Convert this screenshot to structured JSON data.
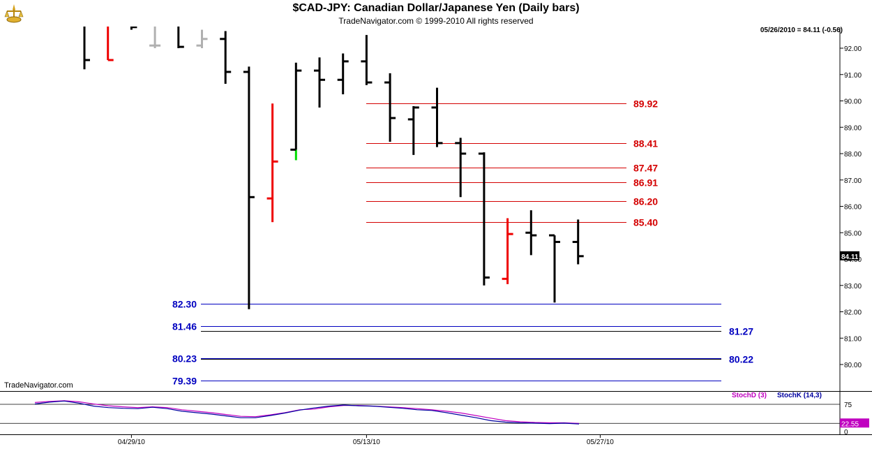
{
  "header": {
    "title": "$CAD-JPY:  Canadian Dollar/Japanese Yen  (Daily bars)",
    "subtitle": "TradeNavigator.com © 1999-2010 All rights reserved",
    "last_quote": "05/26/2010 = 84.11 (-0.56)",
    "brand": "TradeNavigator.com"
  },
  "colors": {
    "resistance": "#d40000",
    "support": "#0000c0",
    "bar_up_default": "#000000",
    "bar_red": "#ee0000",
    "bar_green": "#00dd00",
    "bar_gray": "#b0b0b0",
    "stoch_d": "#c000c0",
    "stoch_k": "#0000a0"
  },
  "chart_data": [
    {
      "type": "ohlc",
      "title": "$CAD-JPY:  Canadian Dollar/Japanese Yen  (Daily bars)",
      "ylim": [
        78.9,
        93.2
      ],
      "y_ticks": [
        "80.00",
        "81.00",
        "82.00",
        "83.00",
        "84.00",
        "85.00",
        "86.00",
        "87.00",
        "88.00",
        "89.00",
        "90.00",
        "91.00",
        "92.00"
      ],
      "x_ticks": [
        "04/29/10",
        "05/13/10",
        "05/27/10"
      ],
      "last_price_label": "84.11",
      "bars": [
        {
          "o": 93.6,
          "h": 93.8,
          "l": 91.2,
          "c": 91.55,
          "color": "black"
        },
        {
          "o": 93.0,
          "h": 93.4,
          "l": 91.55,
          "c": 91.55,
          "color": "red"
        },
        {
          "o": 93.3,
          "h": 93.6,
          "l": 92.7,
          "c": 92.8,
          "color": "black"
        },
        {
          "o": 92.1,
          "h": 93.2,
          "l": 92.0,
          "c": 92.1,
          "color": "gray"
        },
        {
          "o": 93.4,
          "h": 93.5,
          "l": 92.0,
          "c": 92.05,
          "color": "black"
        },
        {
          "o": 92.1,
          "h": 92.7,
          "l": 92.0,
          "c": 92.35,
          "color": "gray"
        },
        {
          "o": 92.35,
          "h": 92.65,
          "l": 90.65,
          "c": 91.1,
          "color": "black"
        },
        {
          "o": 91.1,
          "h": 91.3,
          "l": 82.1,
          "c": 86.35,
          "color": "black"
        },
        {
          "o": 86.3,
          "h": 89.9,
          "l": 85.4,
          "c": 87.7,
          "color": "red"
        },
        {
          "o": 88.15,
          "h": 91.45,
          "l": 87.75,
          "c": 91.15,
          "color": "black",
          "tail": "green"
        },
        {
          "o": 91.15,
          "h": 91.65,
          "l": 89.75,
          "c": 90.8,
          "color": "black"
        },
        {
          "o": 90.8,
          "h": 91.8,
          "l": 90.25,
          "c": 91.5,
          "color": "black"
        },
        {
          "o": 91.5,
          "h": 92.5,
          "l": 90.6,
          "c": 90.7,
          "color": "black"
        },
        {
          "o": 90.7,
          "h": 91.05,
          "l": 88.45,
          "c": 89.35,
          "color": "black"
        },
        {
          "o": 89.3,
          "h": 89.8,
          "l": 87.95,
          "c": 89.75,
          "color": "black"
        },
        {
          "o": 89.75,
          "h": 90.5,
          "l": 88.25,
          "c": 88.4,
          "color": "black"
        },
        {
          "o": 88.4,
          "h": 88.6,
          "l": 86.35,
          "c": 88.0,
          "color": "black"
        },
        {
          "o": 88.0,
          "h": 88.05,
          "l": 83.0,
          "c": 83.3,
          "color": "black"
        },
        {
          "o": 83.25,
          "h": 85.55,
          "l": 83.05,
          "c": 84.95,
          "color": "red"
        },
        {
          "o": 85.0,
          "h": 85.85,
          "l": 84.15,
          "c": 84.9,
          "color": "black"
        },
        {
          "o": 84.9,
          "h": 84.9,
          "l": 82.35,
          "c": 84.65,
          "color": "black"
        },
        {
          "o": 84.65,
          "h": 85.5,
          "l": 83.8,
          "c": 84.11,
          "color": "black"
        }
      ],
      "resistance_levels": [
        {
          "value": 89.92,
          "label": "89.92"
        },
        {
          "value": 88.41,
          "label": "88.41"
        },
        {
          "value": 87.47,
          "label": "87.47"
        },
        {
          "value": 86.91,
          "label": "86.91"
        },
        {
          "value": 86.2,
          "label": "86.20"
        },
        {
          "value": 85.4,
          "label": "85.40"
        }
      ],
      "support_levels": [
        {
          "value": 82.3,
          "label": "82.30",
          "side": "left"
        },
        {
          "value": 81.46,
          "label": "81.46",
          "side": "left"
        },
        {
          "value": 81.27,
          "label": "81.27",
          "side": "right"
        },
        {
          "value": 80.23,
          "label": "80.23",
          "side": "left"
        },
        {
          "value": 80.22,
          "label": "80.22",
          "side": "right"
        },
        {
          "value": 79.39,
          "label": "79.39",
          "side": "left"
        }
      ]
    },
    {
      "type": "line",
      "ylim": [
        0,
        100
      ],
      "y_ticks": [
        "75",
        "0"
      ],
      "reference_line": 75,
      "last_value_label": "22.55",
      "series": [
        {
          "name": "StochD (3)",
          "values": [
            80,
            83,
            85,
            82,
            76,
            71,
            68,
            66,
            68,
            66,
            60,
            56,
            52,
            47,
            42,
            41,
            46,
            52,
            60,
            62,
            68,
            72,
            72,
            70,
            68,
            66,
            63,
            60,
            56,
            51,
            44,
            37,
            30,
            27,
            25,
            24,
            24,
            22.55
          ]
        },
        {
          "name": "StochK (14,3)",
          "values": [
            76,
            81,
            84,
            78,
            70,
            66,
            64,
            63,
            67,
            63,
            56,
            52,
            48,
            43,
            38,
            38,
            44,
            51,
            59,
            65,
            70,
            73,
            71,
            70,
            67,
            64,
            60,
            58,
            52,
            45,
            38,
            30,
            26,
            24,
            23,
            22,
            23,
            21
          ]
        }
      ]
    }
  ]
}
